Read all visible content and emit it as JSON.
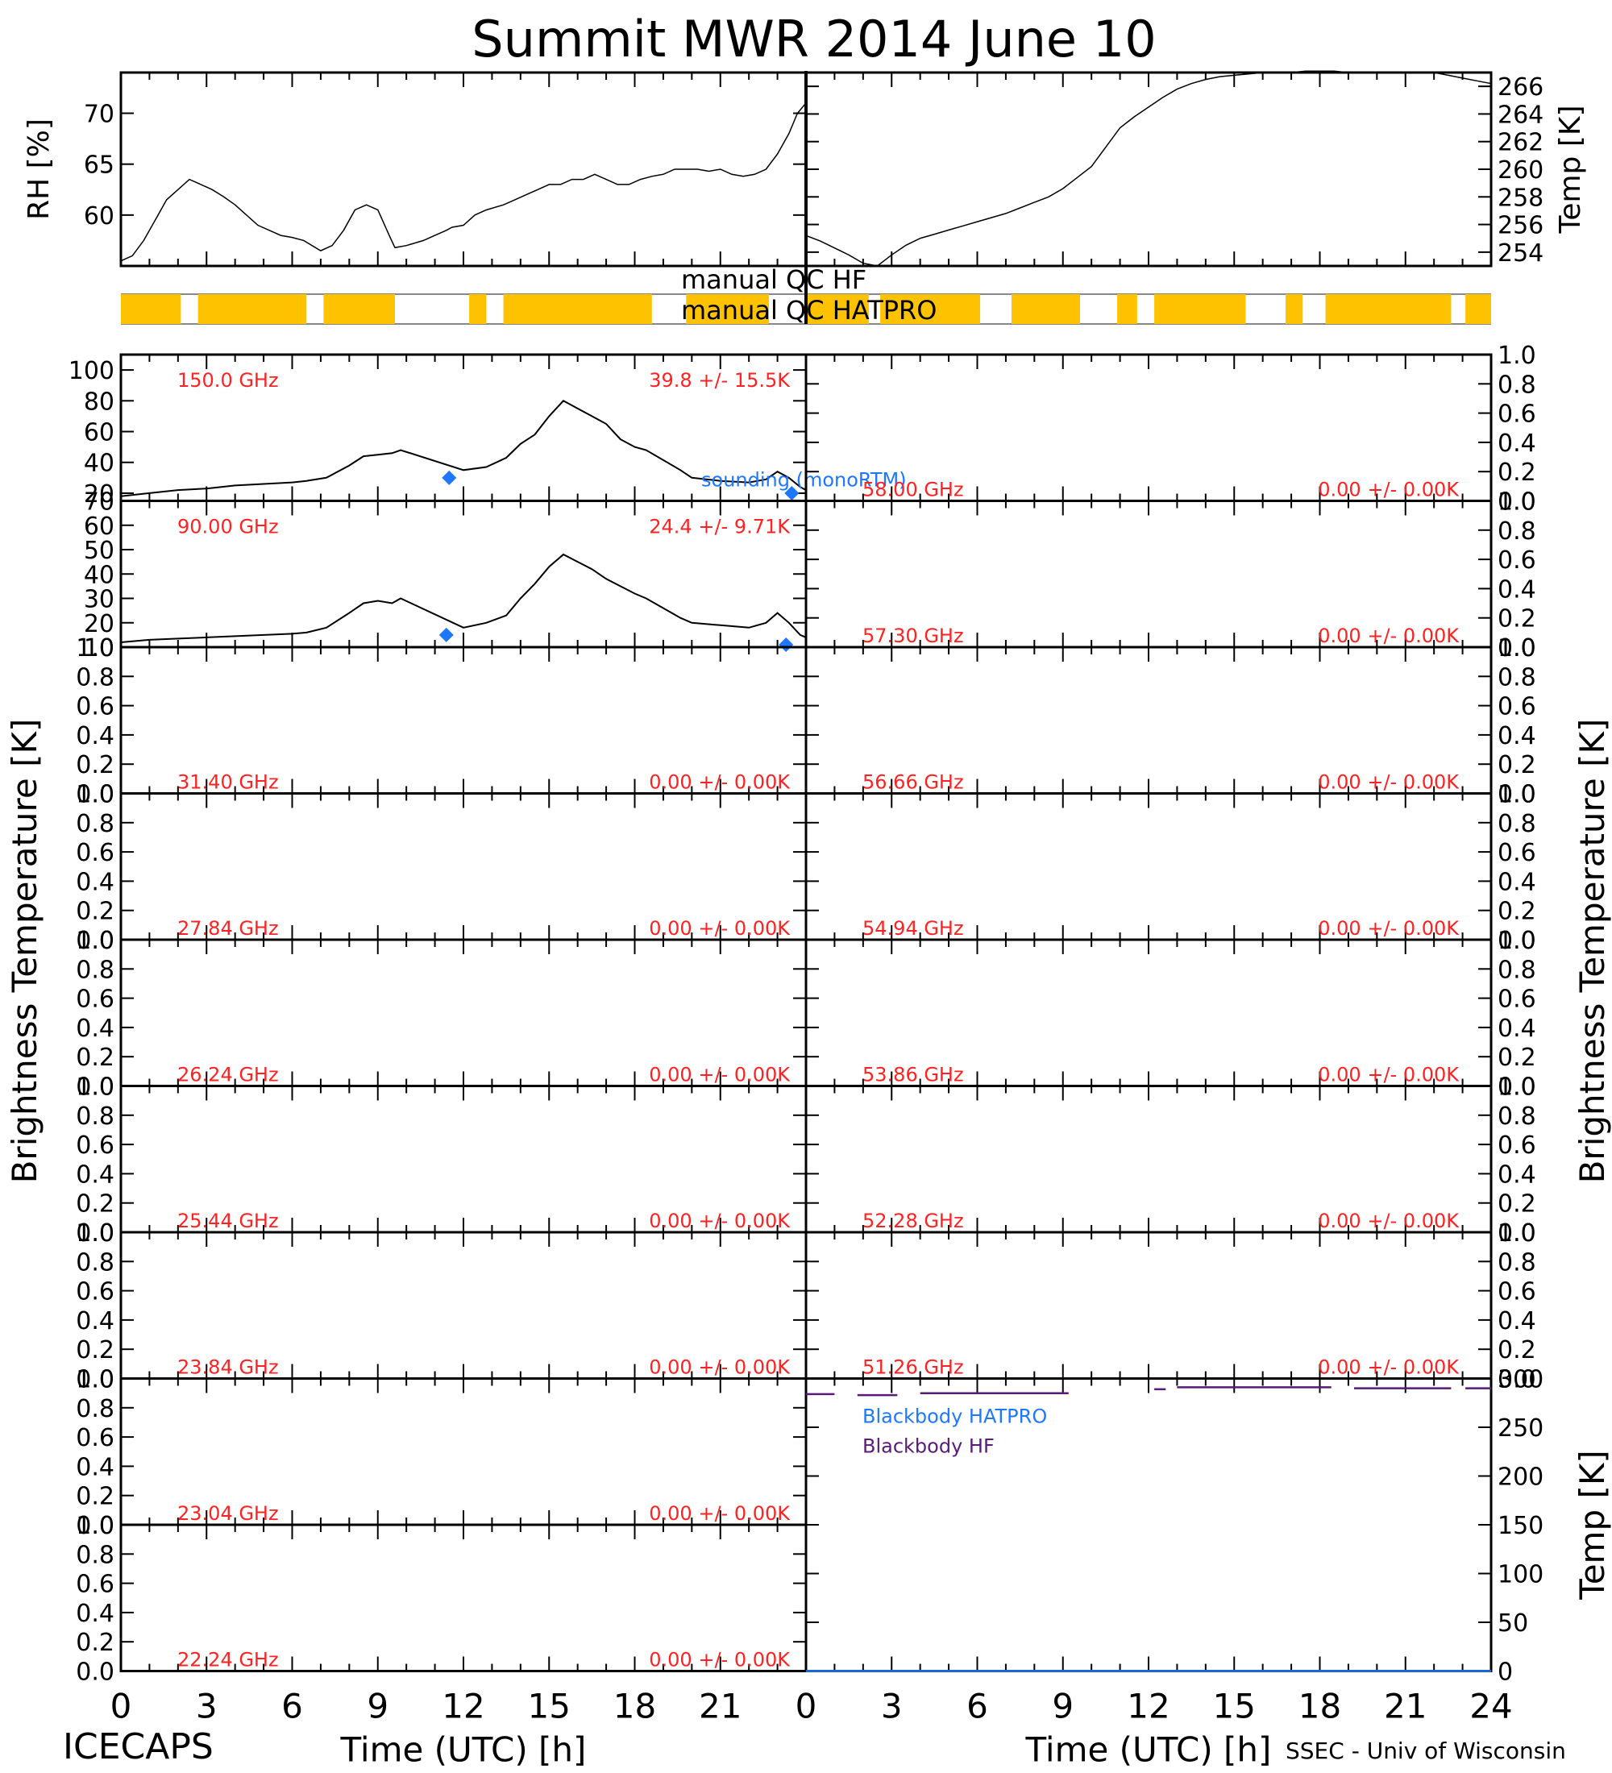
{
  "page": {
    "title": "Summit MWR 2014 June 10",
    "footer_left": "ICECAPS",
    "footer_right": "SSEC - Univ of Wisconsin",
    "left_axis_label": "Brightness Temperature [K]",
    "right_axis_label": "Brightness Temperature [K]"
  },
  "chart_data": [
    {
      "type": "line",
      "name": "rh-panel",
      "ylabel": "RH [%]",
      "xlim": [
        0,
        24
      ],
      "ylim": [
        55,
        74
      ],
      "yticks": [
        "60",
        "65",
        "70"
      ],
      "series": [
        {
          "x": [
            0,
            0.4,
            0.8,
            1.2,
            1.6,
            2.0,
            2.4,
            2.8,
            3.2,
            3.6,
            4.0,
            4.4,
            4.8,
            5.2,
            5.6,
            6.0,
            6.4,
            7.0,
            7.4,
            7.8,
            8.2,
            8.6,
            9.0,
            9.4,
            9.6,
            10.0,
            10.6,
            11.0,
            11.4,
            11.6,
            12.0,
            12.4,
            12.8,
            13.4,
            13.8,
            14.2,
            14.6,
            15.0,
            15.4,
            15.8,
            16.2,
            16.6,
            17.0,
            17.4,
            17.8,
            18.2,
            18.6,
            19.0,
            19.4,
            19.8,
            20.2,
            20.6,
            21.0,
            21.4,
            21.8,
            22.2,
            22.6,
            23.0,
            23.4,
            23.7,
            24.0
          ],
          "y": [
            55.5,
            56.0,
            57.5,
            59.5,
            61.5,
            62.5,
            63.5,
            63.0,
            62.5,
            61.8,
            61.0,
            60.0,
            59.0,
            58.5,
            58.0,
            57.8,
            57.5,
            56.5,
            57.0,
            58.5,
            60.5,
            61.0,
            60.5,
            58.0,
            56.8,
            57.0,
            57.5,
            58.0,
            58.5,
            58.8,
            59.0,
            60.0,
            60.5,
            61.0,
            61.5,
            62.0,
            62.5,
            63.0,
            63.0,
            63.5,
            63.5,
            64.0,
            63.5,
            63.0,
            63.0,
            63.5,
            63.8,
            64.0,
            64.5,
            64.5,
            64.5,
            64.3,
            64.5,
            64.0,
            63.8,
            64.0,
            64.5,
            66.0,
            68.0,
            70.0,
            71.0
          ]
        }
      ]
    },
    {
      "type": "line",
      "name": "temp-panel",
      "ylabel": "Temp [K]",
      "xlim": [
        0,
        24
      ],
      "ylim": [
        253,
        267
      ],
      "yticks": [
        "254",
        "256",
        "258",
        "260",
        "262",
        "264",
        "266"
      ],
      "series": [
        {
          "x": [
            0,
            0.5,
            1.0,
            1.5,
            2.0,
            2.5,
            3.0,
            3.5,
            4.0,
            4.5,
            5.0,
            5.5,
            6.0,
            6.5,
            7.0,
            7.5,
            8.0,
            8.5,
            9.0,
            9.5,
            10.0,
            11.0,
            11.5,
            12.0,
            12.5,
            13.0,
            13.5,
            14.0,
            14.5,
            15.0,
            15.5,
            16.0,
            16.5,
            17.0,
            17.5,
            18.0,
            18.5,
            19.0,
            19.5,
            20.0,
            20.5,
            21.0,
            21.5,
            22.0,
            22.5,
            23.0,
            23.5,
            24.0
          ],
          "y": [
            255.2,
            254.8,
            254.3,
            253.8,
            253.2,
            253.0,
            253.8,
            254.5,
            255.0,
            255.3,
            255.6,
            255.9,
            256.2,
            256.5,
            256.8,
            257.2,
            257.6,
            258.0,
            258.6,
            259.4,
            260.2,
            263.0,
            263.8,
            264.5,
            265.2,
            265.8,
            266.2,
            266.5,
            266.7,
            266.8,
            266.9,
            267.0,
            267.0,
            267.0,
            267.1,
            267.1,
            267.1,
            267.0,
            267.0,
            267.0,
            267.0,
            267.0,
            267.0,
            267.0,
            266.8,
            266.6,
            266.4,
            266.2
          ]
        }
      ]
    }
  ],
  "qc": {
    "hf_label": "manual QC HF",
    "hatpro_label": "manual QC HATPRO",
    "hatpro_segments": [
      [
        0,
        2.1
      ],
      [
        2.7,
        6.5
      ],
      [
        7.1,
        9.6
      ],
      [
        12.2,
        12.8
      ],
      [
        13.4,
        18.6
      ],
      [
        19.8,
        22.7
      ]
    ],
    "hf_segments": [
      [
        0,
        2.2
      ],
      [
        2.6,
        6.1
      ],
      [
        7.2,
        9.6
      ],
      [
        10.9,
        11.6
      ],
      [
        12.2,
        15.4
      ],
      [
        16.8,
        17.4
      ],
      [
        18.2,
        22.6
      ],
      [
        23.1,
        24.0
      ]
    ],
    "colors": {
      "hatpro": "#fec200",
      "hf": "#fec200"
    }
  },
  "bt_panels": {
    "left": [
      {
        "freq_label": "150.0 GHz",
        "stat_label": "39.8 +/-  15.5K",
        "ylim": [
          15,
          110
        ],
        "yticks": [
          "20",
          "40",
          "60",
          "80",
          "100"
        ],
        "legend": "sounding (monoRTM)",
        "series": {
          "x": [
            0,
            1,
            2,
            3,
            4,
            5,
            6,
            6.5,
            7.2,
            8,
            8.5,
            9,
            9.5,
            9.8,
            12.0,
            12.8,
            13.5,
            14,
            14.5,
            15,
            15.5,
            16,
            16.5,
            17,
            17.5,
            18,
            18.4,
            19.6,
            20,
            21,
            22,
            22.6,
            23,
            23.4,
            23.8,
            24
          ],
          "y": [
            18,
            20,
            22,
            23,
            25,
            26,
            27,
            28,
            30,
            38,
            44,
            45,
            46,
            48,
            35,
            37,
            43,
            52,
            58,
            70,
            80,
            75,
            70,
            65,
            55,
            50,
            48,
            35,
            30,
            28,
            27,
            29,
            34,
            30,
            24,
            22
          ]
        },
        "sounding_points": {
          "x": [
            11.5,
            23.5
          ],
          "y": [
            30,
            20
          ]
        }
      },
      {
        "freq_label": "90.00 GHz",
        "stat_label": "24.4 +/-   9.71K",
        "ylim": [
          10,
          70
        ],
        "yticks": [
          "10",
          "20",
          "30",
          "40",
          "50",
          "60",
          "70"
        ],
        "series": {
          "x": [
            0,
            1,
            2,
            3,
            4,
            5,
            6,
            6.5,
            7.2,
            8,
            8.5,
            9,
            9.5,
            9.8,
            12.0,
            12.8,
            13.5,
            14,
            14.5,
            15,
            15.5,
            16,
            16.5,
            17,
            17.5,
            18,
            18.4,
            19.6,
            20,
            21,
            22,
            22.6,
            23,
            23.4,
            23.8,
            24
          ],
          "y": [
            12,
            13,
            13.5,
            14,
            14.5,
            15,
            15.5,
            16,
            18,
            24,
            28,
            29,
            28,
            30,
            18,
            20,
            23,
            30,
            36,
            43,
            48,
            45,
            42,
            38,
            35,
            32,
            30,
            22,
            20,
            19,
            18,
            20,
            24,
            20,
            15,
            14
          ]
        },
        "sounding_points": {
          "x": [
            11.4,
            23.3
          ],
          "y": [
            15,
            11
          ]
        }
      },
      {
        "freq_label": "31.40 GHz",
        "stat_label": "0.00 +/-   0.00K"
      },
      {
        "freq_label": "27.84 GHz",
        "stat_label": "0.00 +/-   0.00K"
      },
      {
        "freq_label": "26.24 GHz",
        "stat_label": "0.00 +/-   0.00K"
      },
      {
        "freq_label": "25.44 GHz",
        "stat_label": "0.00 +/-   0.00K"
      },
      {
        "freq_label": "23.84 GHz",
        "stat_label": "0.00 +/-   0.00K"
      },
      {
        "freq_label": "23.04 GHz",
        "stat_label": "0.00 +/-   0.00K"
      },
      {
        "freq_label": "22.24 GHz",
        "stat_label": "0.00 +/-   0.00K"
      }
    ],
    "right": [
      {
        "freq_label": "58.00 GHz",
        "stat_label": "0.00 +/-   0.00K"
      },
      {
        "freq_label": "57.30 GHz",
        "stat_label": "0.00 +/-   0.00K"
      },
      {
        "freq_label": "56.66 GHz",
        "stat_label": "0.00 +/-   0.00K"
      },
      {
        "freq_label": "54.94 GHz",
        "stat_label": "0.00 +/-   0.00K"
      },
      {
        "freq_label": "53.86 GHz",
        "stat_label": "0.00 +/-   0.00K"
      },
      {
        "freq_label": "52.28 GHz",
        "stat_label": "0.00 +/-   0.00K"
      },
      {
        "freq_label": "51.26 GHz",
        "stat_label": "0.00 +/-   0.00K"
      }
    ],
    "empty_yticks": [
      "0.0",
      "0.2",
      "0.4",
      "0.6",
      "0.8",
      "1.0"
    ]
  },
  "blackbody": {
    "ylabel": "Temp [K]",
    "ylim": [
      0,
      300
    ],
    "yticks": [
      "0",
      "50",
      "100",
      "150",
      "200",
      "250",
      "300"
    ],
    "legend_hatpro": "Blackbody HATPRO",
    "legend_hf": "Blackbody HF",
    "hf_segments": [
      [
        0,
        1.0,
        284
      ],
      [
        1.8,
        3.2,
        283
      ],
      [
        4.0,
        9.2,
        285
      ],
      [
        12.2,
        12.6,
        289
      ],
      [
        13.0,
        18.4,
        291
      ],
      [
        19.2,
        22.6,
        290
      ],
      [
        23.1,
        24,
        290
      ]
    ],
    "hatpro_value": 0,
    "colors": {
      "hatpro": "#1e78ff",
      "hf": "#5a1a78",
      "stat": "#ff2222"
    }
  },
  "x_axis": {
    "ticks": [
      "0",
      "3",
      "6",
      "9",
      "12",
      "15",
      "18",
      "21",
      "24"
    ],
    "label": "Time (UTC) [h]"
  }
}
